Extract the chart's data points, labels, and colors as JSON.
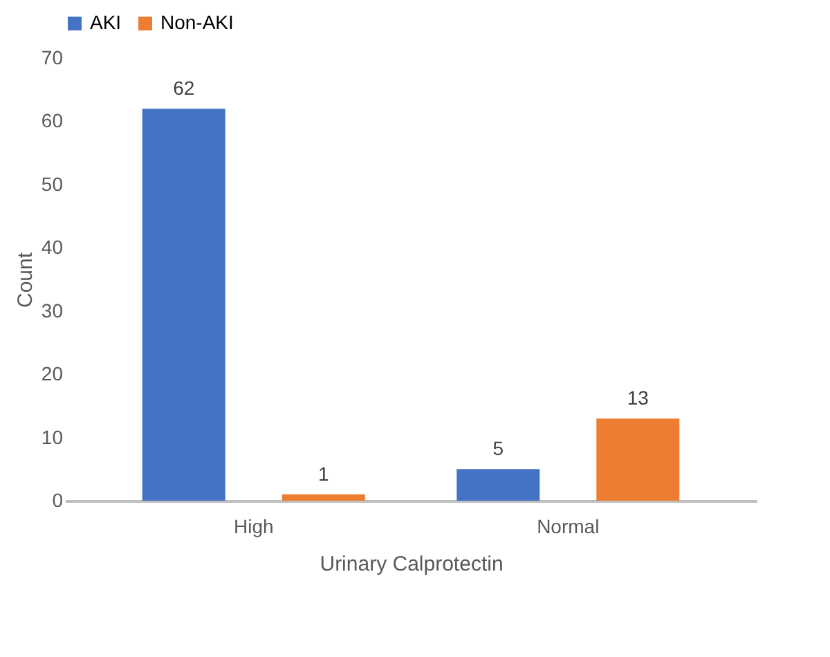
{
  "chart_data": {
    "type": "bar",
    "xlabel": "Urinary Calprotectin",
    "ylabel": "Count",
    "categories": [
      "High",
      "Normal"
    ],
    "series": [
      {
        "name": "AKI",
        "color": "#4472c4",
        "values": [
          62,
          5
        ]
      },
      {
        "name": "Non-AKI",
        "color": "#ed7d31",
        "values": [
          1,
          13
        ]
      }
    ],
    "ylim": [
      0,
      70
    ],
    "yticks": [
      0,
      10,
      20,
      30,
      40,
      50,
      60,
      70
    ],
    "grid": false,
    "legend": "top",
    "data_labels": true
  }
}
